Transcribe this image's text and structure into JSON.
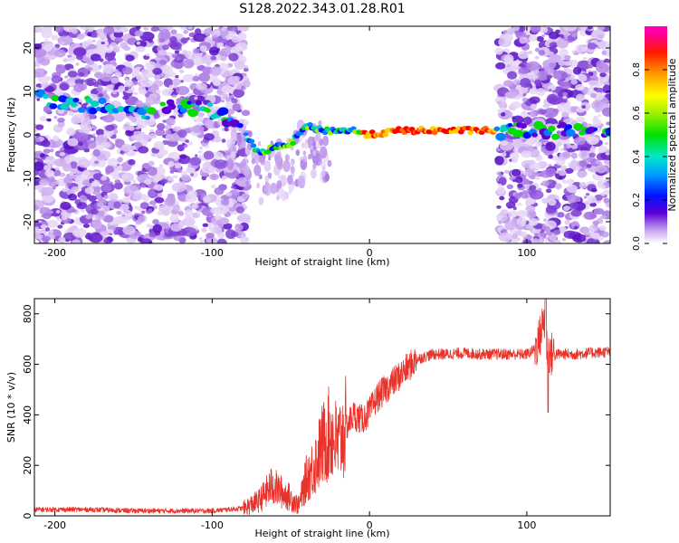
{
  "title": "S128.2022.343.01.28.R01",
  "chart_data": [
    {
      "type": "heatmap",
      "xlabel": "Height of straight line (km)",
      "ylabel": "Frequency (Hz)",
      "xlim": [
        -213,
        153
      ],
      "ylim": [
        -25,
        25
      ],
      "x_ticks": [
        -200,
        -100,
        0,
        100
      ],
      "y_ticks": [
        -20,
        -10,
        0,
        10,
        20
      ],
      "noise_bands_x": [
        [
          -213,
          -78
        ],
        [
          82,
          153
        ]
      ],
      "dropout_region_x": [
        -78,
        82
      ],
      "ridge": {
        "x": [
          -213,
          -200,
          -180,
          -160,
          -140,
          -120,
          -105,
          -90,
          -80,
          -70,
          -60,
          -50,
          -40,
          -30,
          -20,
          -10,
          0,
          20,
          40,
          60,
          80,
          100,
          120,
          140,
          153
        ],
        "frequency": [
          9,
          8,
          7,
          6,
          5,
          7,
          6,
          4,
          0,
          -4,
          -3,
          -2,
          2,
          1,
          1,
          1,
          0,
          1,
          1,
          1,
          1,
          1,
          1,
          1,
          1
        ]
      },
      "colorbar": {
        "label": "Normalized spectral amplitude",
        "range": [
          0.0,
          1.0
        ],
        "ticks": [
          "0.0",
          "0.2",
          "0.4",
          "0.6",
          "0.8"
        ]
      }
    },
    {
      "type": "line",
      "xlabel": "Height of straight line (km)",
      "ylabel": "SNR (10 * v/v)",
      "xlim": [
        -213,
        153
      ],
      "ylim": [
        0,
        860
      ],
      "x_ticks": [
        -200,
        -100,
        0,
        100
      ],
      "y_ticks": [
        0,
        200,
        400,
        600,
        800
      ],
      "series": [
        {
          "color": "#e8322a",
          "x": [
            -213,
            -180,
            -150,
            -120,
            -100,
            -90,
            -80,
            -70,
            -62,
            -55,
            -50,
            -45,
            -40,
            -35,
            -30,
            -25,
            -20,
            -15,
            -10,
            -5,
            0,
            5,
            10,
            15,
            20,
            25,
            30,
            35,
            40,
            50,
            60,
            70,
            80,
            90,
            100,
            105,
            108,
            111,
            113,
            115,
            120,
            130,
            140,
            153
          ],
          "snr": [
            25,
            25,
            20,
            20,
            20,
            25,
            30,
            60,
            120,
            90,
            70,
            40,
            150,
            200,
            280,
            330,
            280,
            350,
            400,
            380,
            410,
            470,
            500,
            530,
            560,
            590,
            620,
            630,
            640,
            640,
            645,
            640,
            640,
            640,
            640,
            660,
            700,
            780,
            660,
            640,
            640,
            640,
            645,
            650
          ]
        }
      ]
    }
  ]
}
